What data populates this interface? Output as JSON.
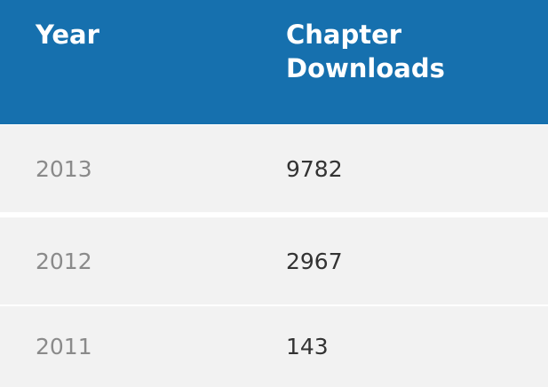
{
  "table": {
    "headers": {
      "year": "Year",
      "downloads_line1": "Chapter",
      "downloads_line2": "Downloads"
    },
    "rows": [
      {
        "year": "2013",
        "downloads": "9782"
      },
      {
        "year": "2012",
        "downloads": "2967"
      },
      {
        "year": "2011",
        "downloads": "143"
      }
    ]
  },
  "colors": {
    "header_bg": "#1670ae",
    "row_bg": "#f2f2f2",
    "year_text": "#8a8a8a",
    "value_text": "#333333"
  }
}
